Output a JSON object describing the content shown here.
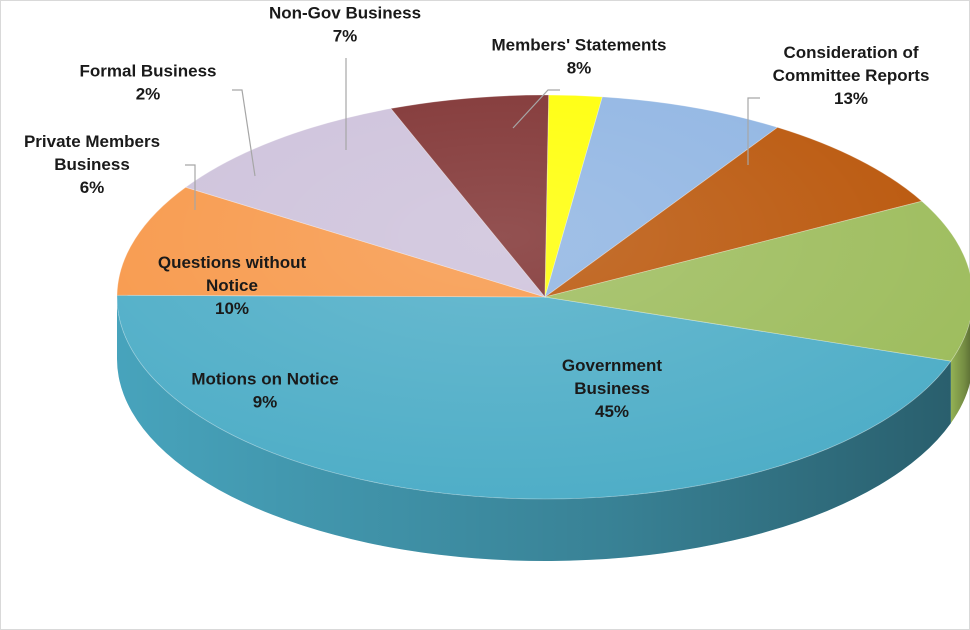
{
  "chart_data": {
    "type": "pie",
    "title": "",
    "style": "3d",
    "slices": [
      {
        "label": "Government Business",
        "label_lines": [
          "Government",
          "Business"
        ],
        "value": 45,
        "value_label": "45%",
        "color": "#4bacc6"
      },
      {
        "label": "Motions on Notice",
        "label_lines": [
          "Motions on Notice"
        ],
        "value": 9,
        "value_label": "9%",
        "color": "#f79646"
      },
      {
        "label": "Questions without Notice",
        "label_lines": [
          "Questions without",
          "Notice"
        ],
        "value": 10,
        "value_label": "10%",
        "color": "#ccc0da"
      },
      {
        "label": "Private Members Business",
        "label_lines": [
          "Private Members",
          "Business"
        ],
        "value": 6,
        "value_label": "6%",
        "color": "#7b2b2b"
      },
      {
        "label": "Formal Business",
        "label_lines": [
          "Formal Business"
        ],
        "value": 2,
        "value_label": "2%",
        "color": "#ffff00"
      },
      {
        "label": "Non-Gov Business",
        "label_lines": [
          "Non-Gov Business"
        ],
        "value": 7,
        "value_label": "7%",
        "color": "#8db3e2"
      },
      {
        "label": "Members' Statements",
        "label_lines": [
          "Members' Statements"
        ],
        "value": 8,
        "value_label": "8%",
        "color": "#b85204"
      },
      {
        "label": "Consideration of Committee Reports",
        "label_lines": [
          "Consideration of",
          "Committee Reports"
        ],
        "value": 13,
        "value_label": "13%",
        "color": "#9bbb59"
      }
    ]
  }
}
